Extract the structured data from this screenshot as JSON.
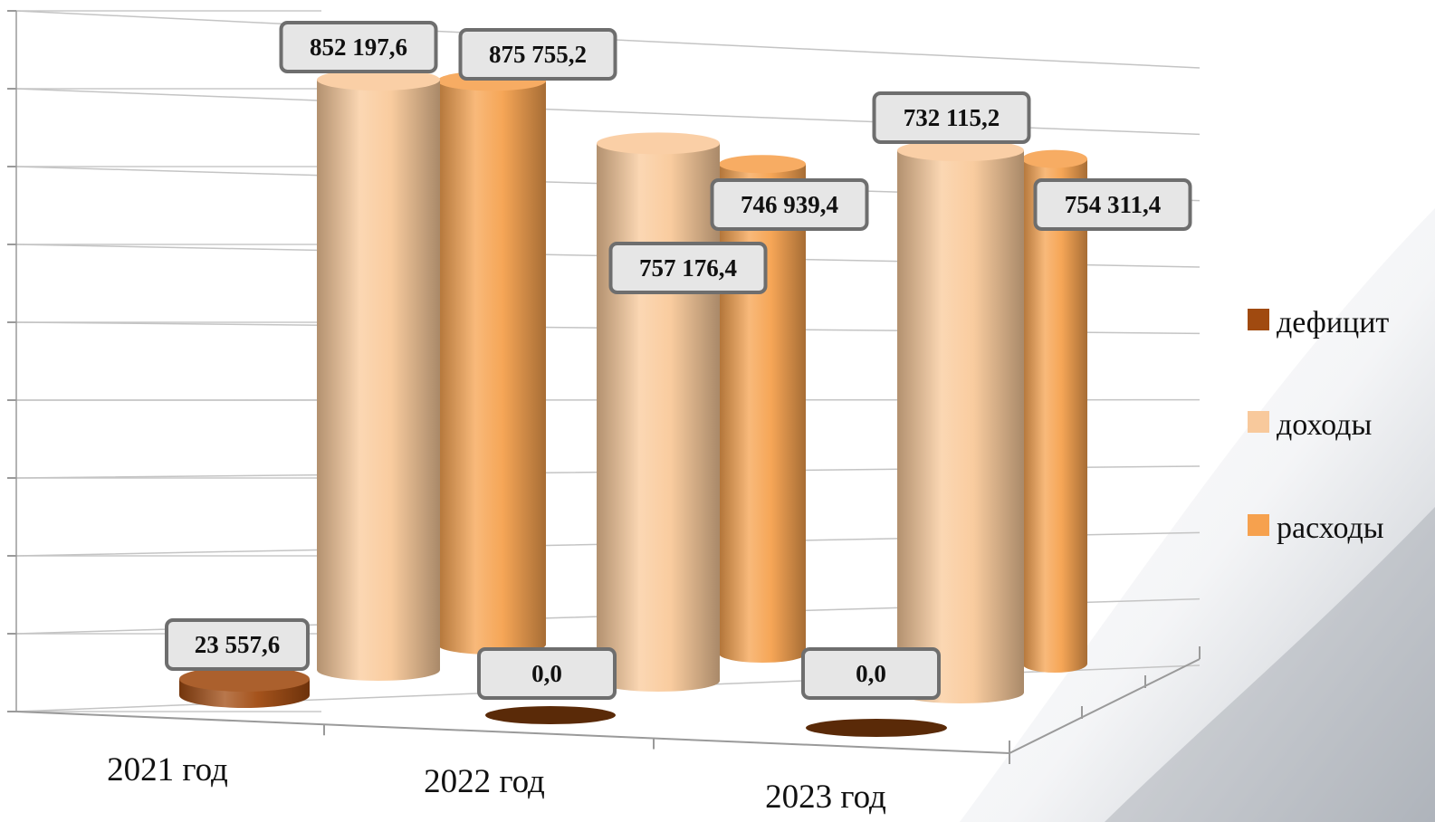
{
  "chart_data": {
    "type": "bar",
    "style": "3d-cylinder",
    "categories": [
      "2021 год",
      "2022 год",
      "2023 год"
    ],
    "series": [
      {
        "name": "дефицит",
        "color": "#a04a10",
        "values": [
          23557.6,
          0.0,
          0.0
        ],
        "labels": [
          "23 557,6",
          "0,0",
          "0,0"
        ]
      },
      {
        "name": "доходы",
        "color": "#f9c99a",
        "values": [
          852197.6,
          757176.4,
          732115.2
        ],
        "labels": [
          "852 197,6",
          "757 176,4",
          "732 115,2"
        ]
      },
      {
        "name": "расходы",
        "color": "#f6a14e",
        "values": [
          875755.2,
          746939.4,
          754311.4
        ],
        "labels": [
          "875 755,2",
          "746 939,4",
          "754 311,4"
        ]
      }
    ],
    "ylim": [
      0,
      1000000
    ],
    "grid": true,
    "legend": "right"
  }
}
